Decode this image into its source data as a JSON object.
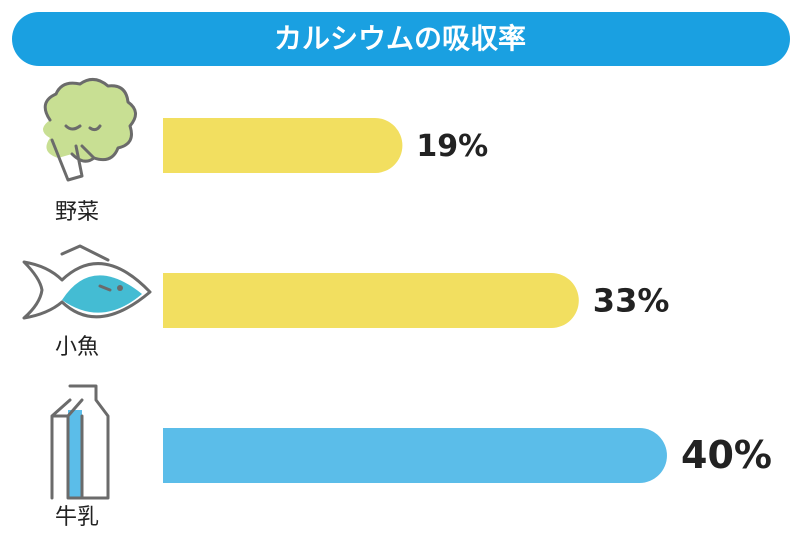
{
  "chart_data": {
    "type": "bar",
    "orientation": "horizontal",
    "title": "カルシウムの吸収率",
    "categories": [
      "野菜",
      "小魚",
      "牛乳"
    ],
    "values": [
      19,
      33,
      40
    ],
    "value_labels": [
      "19%",
      "33%",
      "40%"
    ],
    "colors": [
      "#f2df60",
      "#f2df60",
      "#5bbde9"
    ]
  }
}
